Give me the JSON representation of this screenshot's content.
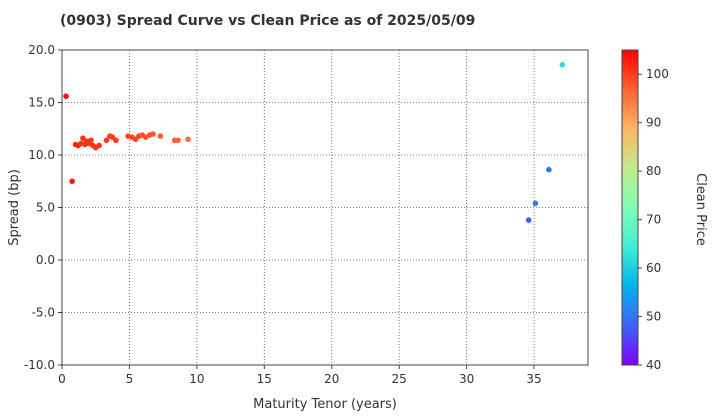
{
  "chart_data": {
    "type": "scatter",
    "title": "(0903)   Spread Curve vs Clean Price as of 2025/05/09",
    "xlabel": "Maturity Tenor (years)",
    "ylabel": "Spread (bp)",
    "xlim": [
      0,
      39
    ],
    "ylim": [
      -10,
      20
    ],
    "xticks": [
      0,
      5,
      10,
      15,
      20,
      25,
      30,
      35
    ],
    "yticks": [
      "-10.0",
      "-5.0",
      "0.0",
      "5.0",
      "10.0",
      "15.0",
      "20.0"
    ],
    "grid": true,
    "colorbar": {
      "label": "Clean Price",
      "range": [
        40,
        105
      ],
      "ticks": [
        40,
        50,
        60,
        70,
        80,
        90,
        100
      ]
    },
    "points": [
      {
        "x": 0.3,
        "y": 15.6,
        "c": 104
      },
      {
        "x": 0.75,
        "y": 7.5,
        "c": 103
      },
      {
        "x": 1.0,
        "y": 11.0,
        "c": 102
      },
      {
        "x": 1.2,
        "y": 10.9,
        "c": 102
      },
      {
        "x": 1.4,
        "y": 11.1,
        "c": 101
      },
      {
        "x": 1.55,
        "y": 11.6,
        "c": 101
      },
      {
        "x": 1.7,
        "y": 11.0,
        "c": 101
      },
      {
        "x": 1.85,
        "y": 11.3,
        "c": 101
      },
      {
        "x": 2.0,
        "y": 11.1,
        "c": 101
      },
      {
        "x": 2.15,
        "y": 11.4,
        "c": 101
      },
      {
        "x": 2.3,
        "y": 10.9,
        "c": 101
      },
      {
        "x": 2.5,
        "y": 10.7,
        "c": 101
      },
      {
        "x": 2.75,
        "y": 10.9,
        "c": 101
      },
      {
        "x": 3.3,
        "y": 11.4,
        "c": 100
      },
      {
        "x": 3.55,
        "y": 11.8,
        "c": 100
      },
      {
        "x": 3.75,
        "y": 11.7,
        "c": 100
      },
      {
        "x": 4.0,
        "y": 11.4,
        "c": 100
      },
      {
        "x": 4.9,
        "y": 11.8,
        "c": 99
      },
      {
        "x": 5.2,
        "y": 11.7,
        "c": 99
      },
      {
        "x": 5.45,
        "y": 11.5,
        "c": 99
      },
      {
        "x": 5.7,
        "y": 11.8,
        "c": 99
      },
      {
        "x": 5.95,
        "y": 11.9,
        "c": 98
      },
      {
        "x": 6.2,
        "y": 11.7,
        "c": 98
      },
      {
        "x": 6.5,
        "y": 11.9,
        "c": 98
      },
      {
        "x": 6.75,
        "y": 12.0,
        "c": 98
      },
      {
        "x": 7.3,
        "y": 11.8,
        "c": 97
      },
      {
        "x": 8.35,
        "y": 11.4,
        "c": 97
      },
      {
        "x": 8.6,
        "y": 11.4,
        "c": 97
      },
      {
        "x": 9.35,
        "y": 11.5,
        "c": 96
      },
      {
        "x": 34.6,
        "y": 3.8,
        "c": 48
      },
      {
        "x": 35.1,
        "y": 5.4,
        "c": 50
      },
      {
        "x": 36.1,
        "y": 8.6,
        "c": 50
      },
      {
        "x": 37.1,
        "y": 18.6,
        "c": 62
      }
    ]
  }
}
